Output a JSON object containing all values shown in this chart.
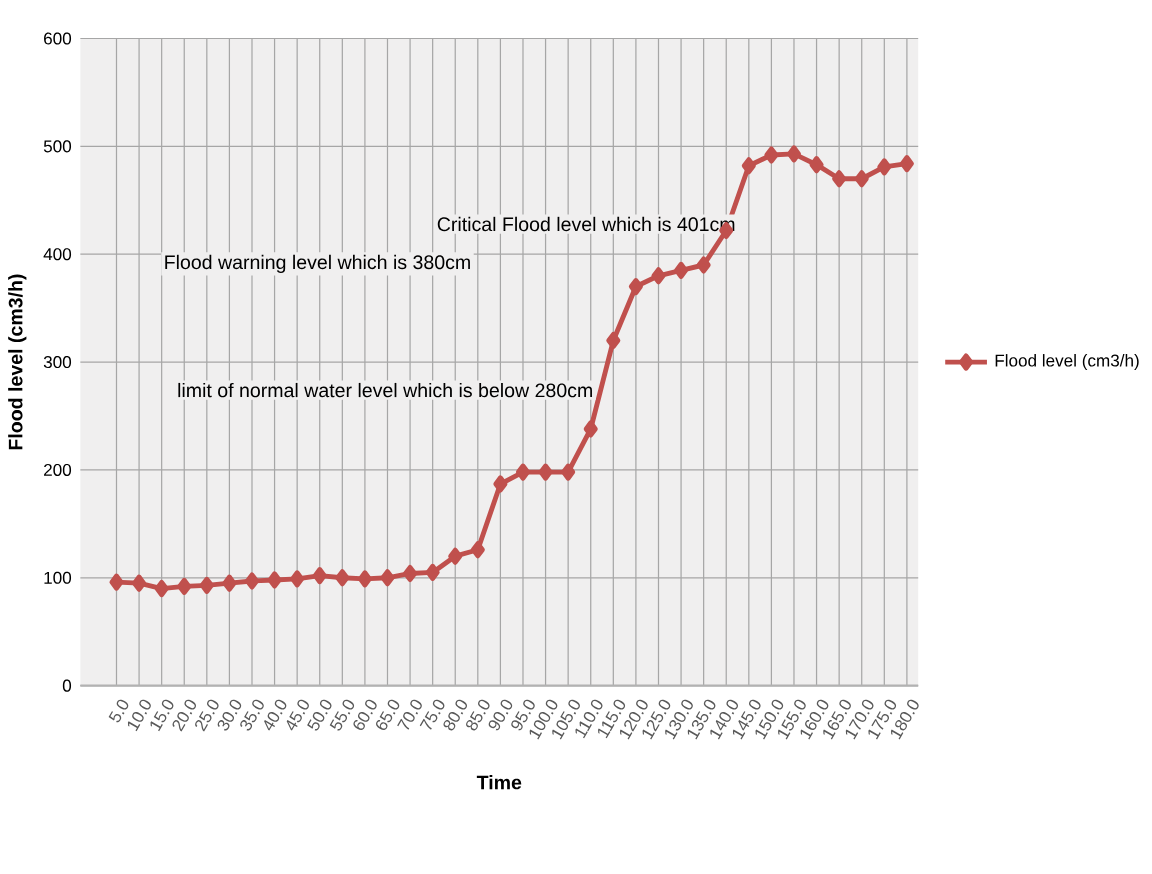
{
  "chart_data": {
    "type": "line",
    "xlabel": "Time",
    "ylabel": "Flood level  (cm3/h)",
    "categories": [
      "5.0",
      "10.0",
      "15.0",
      "20.0",
      "25.0",
      "30.0",
      "35.0",
      "40.0",
      "45.0",
      "50.0",
      "55.0",
      "60.0",
      "65.0",
      "70.0",
      "75.0",
      "80.0",
      "85.0",
      "90.0",
      "95.0",
      "100.0",
      "105.0",
      "110.0",
      "115.0",
      "120.0",
      "125.0",
      "130.0",
      "135.0",
      "140.0",
      "145.0",
      "150.0",
      "155.0",
      "160.0",
      "165.0",
      "170.0",
      "175.0",
      "180.0"
    ],
    "series": [
      {
        "name": "Flood level (cm3/h)",
        "color": "#c0504d",
        "values": [
          96,
          95,
          90,
          92,
          93,
          95,
          97,
          98,
          99,
          102,
          100,
          99,
          100,
          104,
          105,
          120,
          126,
          187,
          198,
          198,
          198,
          238,
          320,
          370,
          380,
          385,
          390,
          422,
          482,
          492,
          493,
          483,
          470,
          470,
          481,
          484
        ]
      }
    ],
    "ylim": [
      0,
      600
    ],
    "yticks": [
      0,
      100,
      200,
      300,
      400,
      500,
      600
    ],
    "annotations": [
      "Flood warning level which is 380cm",
      "Critical Flood level  which is 401cm",
      "limit of normal water level which is below  280cm"
    ],
    "grid": true,
    "legend": "right",
    "marker": "diamond",
    "line_style": "solid"
  }
}
